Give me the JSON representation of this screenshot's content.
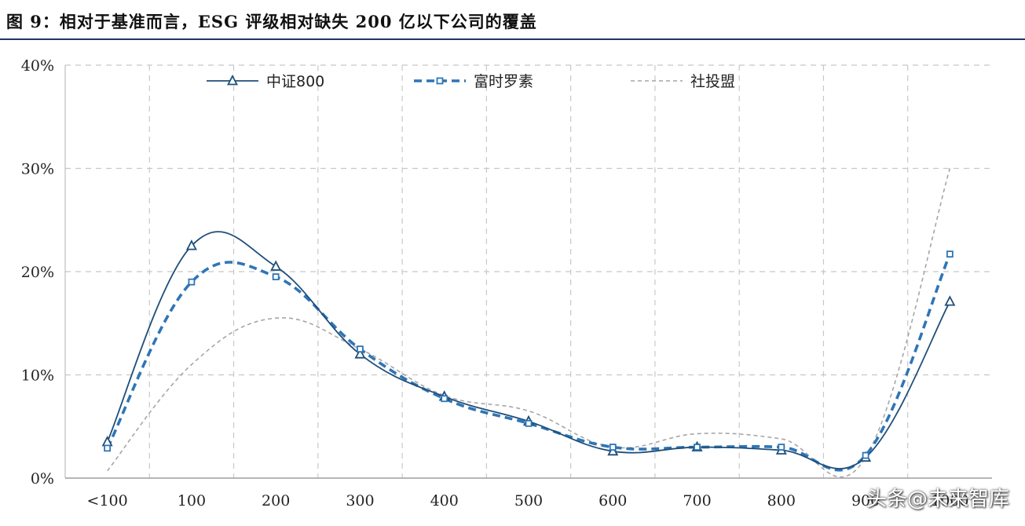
{
  "title": "图 9：相对于基准而言，ESG 评级相对缺失 200 亿以下公司的覆盖",
  "watermark": "头条@未来智库",
  "chart_data": {
    "type": "line",
    "categories": [
      "<100",
      "100",
      "200",
      "300",
      "400",
      "500",
      "600",
      "700",
      "800",
      "900",
      "1000"
    ],
    "y_ticks": [
      "0%",
      "10%",
      "20%",
      "30%",
      "40%"
    ],
    "ylim": [
      0,
      40
    ],
    "grid": true,
    "legend_position": "top",
    "series": [
      {
        "name": "中证800",
        "color": "#1f4e79",
        "style": "solid",
        "marker": "triangle",
        "values": [
          3.5,
          22.5,
          20.5,
          12.0,
          7.9,
          5.5,
          2.6,
          3.0,
          2.7,
          2.0,
          17.1
        ]
      },
      {
        "name": "富时罗素",
        "color": "#2e75b6",
        "style": "dashed",
        "marker": "square",
        "values": [
          2.9,
          19.0,
          19.5,
          12.5,
          7.7,
          5.3,
          3.0,
          3.0,
          3.0,
          2.2,
          21.7
        ]
      },
      {
        "name": "社投盟",
        "color": "#a6a6a6",
        "style": "dotted",
        "marker": "none",
        "values": [
          0.7,
          11.0,
          15.5,
          12.5,
          8.0,
          6.5,
          3.0,
          4.3,
          3.8,
          2.0,
          30.0
        ]
      }
    ]
  }
}
